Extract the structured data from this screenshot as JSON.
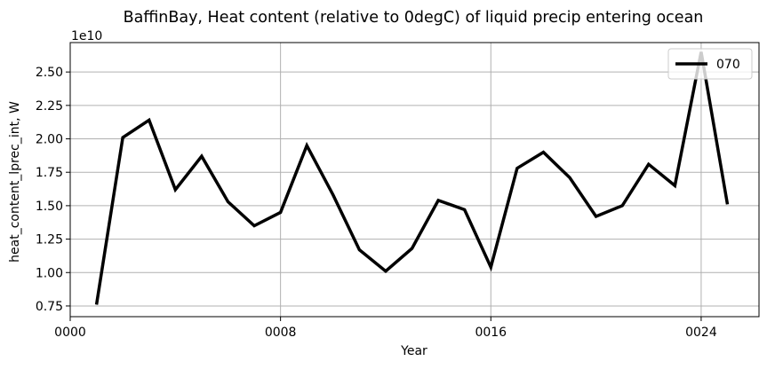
{
  "chart_data": {
    "type": "line",
    "title": "BaffinBay, Heat content (relative to 0degC) of liquid precip entering ocean",
    "xlabel": "Year",
    "ylabel": "heat_content_lprec_int, W",
    "y_offset_label": "1e10",
    "y_scale": 10000000000.0,
    "xlim": [
      0,
      26.2
    ],
    "ylim": [
      0.67,
      2.72
    ],
    "x_ticks": [
      0,
      8,
      16,
      24
    ],
    "x_tick_labels": [
      "0000",
      "0008",
      "0016",
      "0024"
    ],
    "y_ticks": [
      0.75,
      1.0,
      1.25,
      1.5,
      1.75,
      2.0,
      2.25,
      2.5
    ],
    "y_tick_labels": [
      "0.75",
      "1.00",
      "1.25",
      "1.50",
      "1.75",
      "2.00",
      "2.25",
      "2.50"
    ],
    "grid": true,
    "legend_position": "top-right",
    "series": [
      {
        "name": "070",
        "color": "#000000",
        "x": [
          1,
          2,
          3,
          4,
          5,
          6,
          7,
          8,
          9,
          10,
          11,
          12,
          13,
          14,
          15,
          16,
          17,
          18,
          19,
          20,
          21,
          22,
          23,
          24,
          25
        ],
        "values": [
          0.76,
          2.01,
          2.14,
          1.62,
          1.87,
          1.53,
          1.35,
          1.45,
          1.95,
          1.58,
          1.17,
          1.01,
          1.18,
          1.54,
          1.47,
          1.04,
          1.78,
          1.9,
          1.71,
          1.42,
          1.5,
          1.81,
          1.65,
          2.65,
          1.51
        ]
      }
    ]
  }
}
